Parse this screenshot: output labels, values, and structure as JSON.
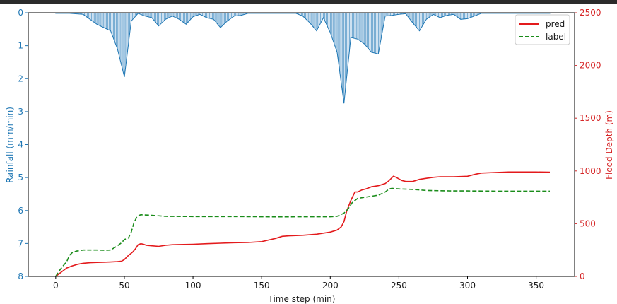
{
  "chart_data": {
    "type": "line",
    "xlabel": "Time step (min)",
    "x_ticks": [
      0,
      50,
      100,
      150,
      200,
      250,
      300,
      350
    ],
    "xlim": [
      -20,
      378
    ],
    "left_axis": {
      "label": "Rainfall (mm/min)",
      "color": "#1f77b4",
      "ticks": [
        0,
        1,
        2,
        3,
        4,
        5,
        6,
        7,
        8
      ],
      "ylim": [
        0,
        8
      ],
      "inverted": true
    },
    "right_axis": {
      "label": "Flood Depth (m)",
      "color": "#d62728",
      "ticks": [
        0,
        500,
        1000,
        1500,
        2000,
        2500
      ],
      "ylim": [
        0,
        2500
      ]
    },
    "rainfall": {
      "type": "bar",
      "color": "#1f77b4",
      "x": [
        0,
        10,
        20,
        25,
        30,
        35,
        40,
        45,
        50,
        55,
        60,
        65,
        70,
        75,
        80,
        85,
        90,
        95,
        100,
        105,
        110,
        115,
        120,
        125,
        130,
        135,
        140,
        150,
        160,
        170,
        175,
        180,
        185,
        190,
        195,
        200,
        205,
        210,
        215,
        220,
        225,
        230,
        235,
        240,
        245,
        250,
        255,
        260,
        265,
        270,
        275,
        280,
        285,
        290,
        295,
        300,
        305,
        310,
        320,
        330,
        340,
        350,
        360
      ],
      "values": [
        0.02,
        0.02,
        0.05,
        0.2,
        0.35,
        0.45,
        0.55,
        1.1,
        1.95,
        0.25,
        0.02,
        0.1,
        0.15,
        0.4,
        0.2,
        0.1,
        0.2,
        0.35,
        0.12,
        0.05,
        0.15,
        0.2,
        0.45,
        0.25,
        0.1,
        0.08,
        0.02,
        0.02,
        0.02,
        0.02,
        0.02,
        0.1,
        0.3,
        0.55,
        0.15,
        0.6,
        1.2,
        2.75,
        0.75,
        0.8,
        0.95,
        1.2,
        1.25,
        0.1,
        0.08,
        0.05,
        0.03,
        0.3,
        0.55,
        0.2,
        0.05,
        0.15,
        0.08,
        0.05,
        0.2,
        0.18,
        0.1,
        0.02,
        0.02,
        0.02,
        0.02,
        0.02,
        0.02
      ]
    },
    "series": [
      {
        "name": "pred",
        "color": "#e31a1c",
        "dash": "solid",
        "x": [
          0,
          2,
          5,
          8,
          12,
          16,
          20,
          25,
          30,
          35,
          40,
          45,
          48,
          50,
          53,
          56,
          58,
          60,
          62,
          64,
          66,
          70,
          75,
          80,
          85,
          90,
          100,
          110,
          120,
          130,
          140,
          150,
          160,
          165,
          170,
          180,
          190,
          200,
          205,
          208,
          210,
          212,
          215,
          218,
          220,
          223,
          226,
          230,
          235,
          240,
          243,
          246,
          248,
          252,
          255,
          260,
          265,
          270,
          275,
          280,
          290,
          300,
          303,
          306,
          310,
          320,
          330,
          340,
          350,
          360
        ],
        "values": [
          0,
          20,
          50,
          80,
          100,
          115,
          125,
          130,
          133,
          135,
          137,
          140,
          145,
          160,
          200,
          230,
          260,
          300,
          310,
          305,
          295,
          290,
          285,
          295,
          300,
          302,
          305,
          310,
          315,
          320,
          322,
          330,
          360,
          380,
          385,
          390,
          400,
          420,
          440,
          470,
          520,
          620,
          720,
          800,
          800,
          820,
          830,
          850,
          860,
          880,
          910,
          950,
          940,
          910,
          900,
          900,
          920,
          930,
          940,
          945,
          945,
          950,
          960,
          970,
          980,
          985,
          990,
          990,
          990,
          988
        ]
      },
      {
        "name": "label",
        "color": "#1a8c1a",
        "dash": "dashed",
        "x": [
          0,
          3,
          6,
          8,
          10,
          12,
          15,
          20,
          25,
          30,
          35,
          40,
          45,
          48,
          50,
          53,
          55,
          57,
          59,
          61,
          62,
          64,
          70,
          80,
          100,
          120,
          140,
          160,
          180,
          200,
          205,
          210,
          213,
          216,
          220,
          225,
          230,
          235,
          240,
          243,
          245,
          250,
          260,
          270,
          280,
          290,
          300,
          320,
          340,
          360
        ],
        "values": [
          0,
          60,
          110,
          140,
          200,
          225,
          240,
          250,
          250,
          250,
          248,
          250,
          290,
          320,
          350,
          365,
          420,
          510,
          560,
          580,
          585,
          583,
          580,
          570,
          568,
          568,
          567,
          565,
          566,
          566,
          570,
          600,
          640,
          700,
          740,
          750,
          760,
          770,
          800,
          830,
          835,
          830,
          825,
          815,
          812,
          810,
          810,
          808,
          808,
          808
        ]
      }
    ],
    "legend": {
      "position": "top-right",
      "entries": [
        "pred",
        "label"
      ]
    }
  }
}
